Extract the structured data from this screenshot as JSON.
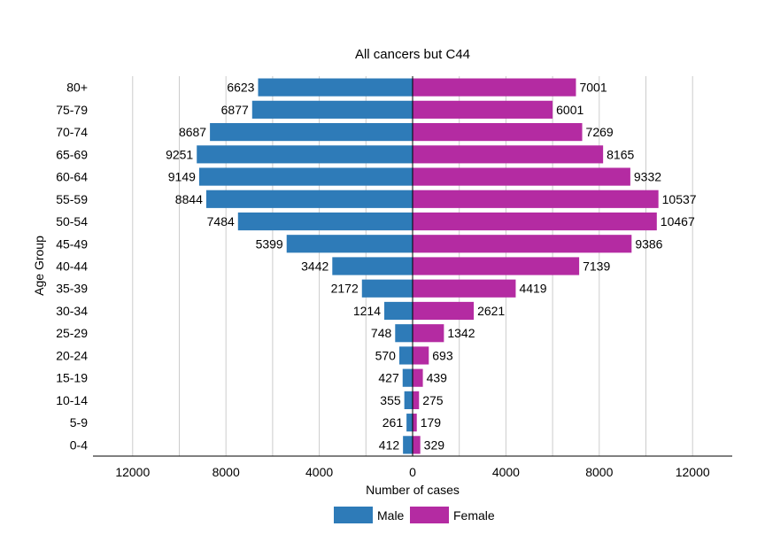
{
  "chart_data": {
    "type": "bar",
    "orientation": "horizontal",
    "layout": "population-pyramid",
    "title": "All cancers but C44",
    "xlabel": "Number of cases",
    "ylabel": "Age Group",
    "categories": [
      "0-4",
      "5-9",
      "10-14",
      "15-19",
      "20-24",
      "25-29",
      "30-34",
      "35-39",
      "40-44",
      "45-49",
      "50-54",
      "55-59",
      "60-64",
      "65-69",
      "70-74",
      "75-79",
      "80+"
    ],
    "series": [
      {
        "name": "Male",
        "side": "left",
        "color": "#2e7bb8",
        "values": [
          412,
          261,
          355,
          427,
          570,
          748,
          1214,
          2172,
          3442,
          5399,
          7484,
          8844,
          9149,
          9251,
          8687,
          6877,
          6623
        ]
      },
      {
        "name": "Female",
        "side": "right",
        "color": "#b42ba2",
        "values": [
          329,
          179,
          275,
          439,
          693,
          1342,
          2621,
          4419,
          7139,
          9386,
          10467,
          10537,
          9332,
          8165,
          7269,
          6001,
          7001
        ]
      }
    ],
    "xlim": [
      -13700,
      13700
    ],
    "xticks": [
      -12000,
      -8000,
      -4000,
      0,
      4000,
      8000,
      12000
    ],
    "xtick_labels": [
      "12000",
      "8000",
      "4000",
      "0",
      "4000",
      "8000",
      "12000"
    ],
    "grid": true,
    "legend_position": "bottom"
  }
}
